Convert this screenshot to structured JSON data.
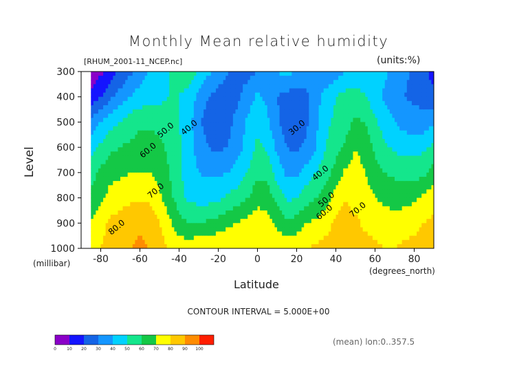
{
  "header": {
    "title": "Monthly Mean relative humidity",
    "subtitle": "[RHUM_2001-11_NCEP.nc]",
    "units": "(units:%)"
  },
  "axes": {
    "ylabel": "Level",
    "yunit": "(millibar)",
    "xlabel": "Latitude",
    "xunit": "(degrees_north)"
  },
  "footer": {
    "contour_interval": "CONTOUR INTERVAL = 5.000E+00",
    "mean_label": "(mean) lon:0..357.5"
  },
  "chart_data": {
    "type": "heatmap",
    "title": "Monthly Mean relative humidity",
    "xlabel": "Latitude",
    "ylabel": "Level",
    "xlim": [
      -90,
      90
    ],
    "ylim": [
      1000,
      300
    ],
    "x_ticks": [
      -80,
      -60,
      -40,
      -20,
      0,
      20,
      40,
      60,
      80
    ],
    "y_ticks": [
      300,
      400,
      500,
      600,
      700,
      800,
      900,
      1000
    ],
    "contour_labels": [
      {
        "text": "30.0",
        "x": 21,
        "y": 530
      },
      {
        "text": "40.0",
        "x": -34,
        "y": 530
      },
      {
        "text": "50.0",
        "x": -46,
        "y": 540
      },
      {
        "text": "60.0",
        "x": -55,
        "y": 620
      },
      {
        "text": "70.0",
        "x": -51,
        "y": 780
      },
      {
        "text": "80.0",
        "x": -71,
        "y": 925
      },
      {
        "text": "40.0",
        "x": 33,
        "y": 710
      },
      {
        "text": "50.0",
        "x": 36,
        "y": 815
      },
      {
        "text": "60.0",
        "x": 35,
        "y": 865
      },
      {
        "text": "70.0",
        "x": 52,
        "y": 855
      }
    ],
    "colorbar": {
      "levels": [
        0,
        10,
        20,
        30,
        40,
        50,
        60,
        70,
        80,
        90,
        100
      ],
      "colors": [
        "#8a00c8",
        "#1414ff",
        "#1464e6",
        "#1496ff",
        "#00d2ff",
        "#14e68c",
        "#14c846",
        "#ffff00",
        "#ffc800",
        "#ff8c00",
        "#ff1e00"
      ]
    },
    "rows": [
      {
        "p": 300,
        "v": [
          null,
          5,
          8,
          14,
          22,
          28,
          36,
          40,
          45,
          50,
          53,
          58,
          48,
          42,
          35,
          30,
          28,
          26,
          30,
          38,
          40,
          44,
          38,
          35,
          32,
          30,
          34,
          40,
          44,
          46,
          48,
          42,
          36,
          32,
          28,
          24,
          15
        ]
      },
      {
        "p": 400,
        "v": [
          null,
          12,
          20,
          28,
          34,
          40,
          44,
          46,
          47,
          50,
          50,
          46,
          38,
          30,
          26,
          25,
          28,
          35,
          42,
          38,
          30,
          26,
          25,
          28,
          35,
          45,
          50,
          54,
          54,
          50,
          44,
          38,
          33,
          30,
          28,
          26,
          24
        ]
      },
      {
        "p": 500,
        "v": [
          null,
          34,
          40,
          46,
          50,
          55,
          58,
          58,
          58,
          55,
          50,
          44,
          32,
          25,
          24,
          27,
          34,
          42,
          48,
          42,
          32,
          25,
          24,
          28,
          38,
          48,
          52,
          56,
          62,
          60,
          52,
          45,
          40,
          36,
          34,
          34,
          38
        ]
      },
      {
        "p": 600,
        "v": [
          null,
          46,
          52,
          58,
          60,
          62,
          64,
          64,
          62,
          58,
          52,
          44,
          36,
          30,
          28,
          30,
          36,
          44,
          52,
          48,
          38,
          30,
          28,
          32,
          40,
          50,
          56,
          62,
          70,
          66,
          58,
          52,
          48,
          46,
          46,
          48,
          52
        ]
      },
      {
        "p": 700,
        "v": [
          null,
          56,
          62,
          66,
          68,
          70,
          70,
          70,
          66,
          60,
          52,
          44,
          40,
          38,
          38,
          40,
          44,
          50,
          58,
          56,
          46,
          38,
          38,
          44,
          50,
          56,
          64,
          72,
          74,
          70,
          64,
          60,
          58,
          56,
          56,
          58,
          64
        ]
      },
      {
        "p": 800,
        "v": [
          null,
          62,
          68,
          74,
          76,
          78,
          78,
          78,
          72,
          64,
          54,
          48,
          46,
          46,
          48,
          52,
          55,
          60,
          66,
          66,
          56,
          48,
          50,
          56,
          60,
          66,
          74,
          80,
          76,
          74,
          70,
          68,
          66,
          66,
          68,
          72,
          76
        ]
      },
      {
        "p": 900,
        "v": [
          null,
          70,
          76,
          82,
          84,
          86,
          88,
          86,
          80,
          72,
          64,
          60,
          60,
          62,
          64,
          68,
          70,
          74,
          76,
          74,
          68,
          62,
          64,
          70,
          72,
          76,
          82,
          84,
          82,
          78,
          76,
          74,
          74,
          76,
          78,
          80,
          82
        ]
      },
      {
        "p": 1000,
        "v": [
          null,
          74,
          80,
          86,
          88,
          90,
          92,
          90,
          84,
          80,
          76,
          76,
          78,
          78,
          80,
          80,
          80,
          80,
          80,
          78,
          76,
          76,
          78,
          80,
          82,
          84,
          86,
          88,
          86,
          84,
          82,
          80,
          80,
          82,
          82,
          84,
          86
        ]
      }
    ]
  }
}
